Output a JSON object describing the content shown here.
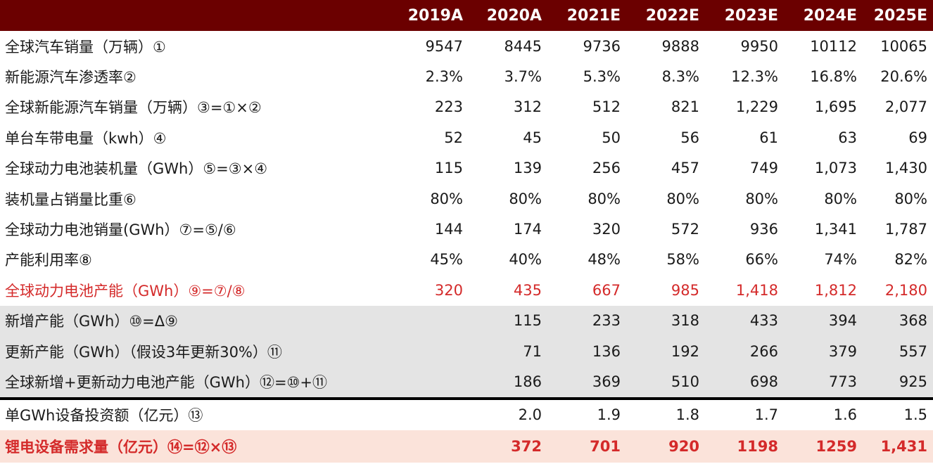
{
  "header": {
    "label": "",
    "years": [
      "2019A",
      "2020A",
      "2021E",
      "2022E",
      "2023E",
      "2024E",
      "2025E"
    ]
  },
  "rows": [
    {
      "label": "全球汽车销量（万辆）①",
      "values": [
        "9547",
        "8445",
        "9736",
        "9888",
        "9950",
        "10112",
        "10065"
      ]
    },
    {
      "label": "新能源汽车渗透率②",
      "values": [
        "2.3%",
        "3.7%",
        "5.3%",
        "8.3%",
        "12.3%",
        "16.8%",
        "20.6%"
      ]
    },
    {
      "label": "全球新能源汽车销量（万辆）③=①×②",
      "values": [
        "223",
        "312",
        "512",
        "821",
        "1,229",
        "1,695",
        "2,077"
      ]
    },
    {
      "label": "单台车带电量（kwh）④",
      "values": [
        "52",
        "45",
        "50",
        "56",
        "61",
        "63",
        "69"
      ]
    },
    {
      "label": "全球动力电池装机量（GWh）⑤=③×④",
      "values": [
        "115",
        "139",
        "256",
        "457",
        "749",
        "1,073",
        "1,430"
      ]
    },
    {
      "label": "装机量占销量比重⑥",
      "values": [
        "80%",
        "80%",
        "80%",
        "80%",
        "80%",
        "80%",
        "80%"
      ]
    },
    {
      "label": "全球动力电池销量(GWh）⑦=⑤/⑥",
      "values": [
        "144",
        "174",
        "320",
        "572",
        "936",
        "1,341",
        "1,787"
      ]
    },
    {
      "label": "产能利用率⑧",
      "values": [
        "45%",
        "40%",
        "48%",
        "58%",
        "66%",
        "74%",
        "82%"
      ]
    },
    {
      "label": "全球动力电池产能（GWh）⑨=⑦/⑧",
      "values": [
        "320",
        "435",
        "667",
        "985",
        "1,418",
        "1,812",
        "2,180"
      ]
    },
    {
      "label": "新增产能（GWh）⑩=Δ⑨",
      "values": [
        "",
        "115",
        "233",
        "318",
        "433",
        "394",
        "368"
      ]
    },
    {
      "label": "更新产能（GWh）（假设3年更新30%）⑪",
      "values": [
        "",
        "71",
        "136",
        "192",
        "266",
        "379",
        "557"
      ]
    },
    {
      "label": "全球新增+更新动力电池产能（GWh）⑫=⑩+⑪",
      "values": [
        "",
        "186",
        "369",
        "510",
        "698",
        "773",
        "925"
      ]
    },
    {
      "label": "单GWh设备投资额（亿元）⑬",
      "values": [
        "",
        "2.0",
        "1.9",
        "1.8",
        "1.7",
        "1.6",
        "1.5"
      ]
    },
    {
      "label": "锂电设备需求量（亿元）⑭=⑫×⑬",
      "values": [
        "",
        "372",
        "701",
        "920",
        "1198",
        "1259",
        "1,431"
      ]
    }
  ],
  "colors": {
    "header_bg": "#6b0000",
    "highlight_text": "#d42a2a",
    "gray_band": "#e4e4e4",
    "final_row_bg": "#fbe3da"
  }
}
